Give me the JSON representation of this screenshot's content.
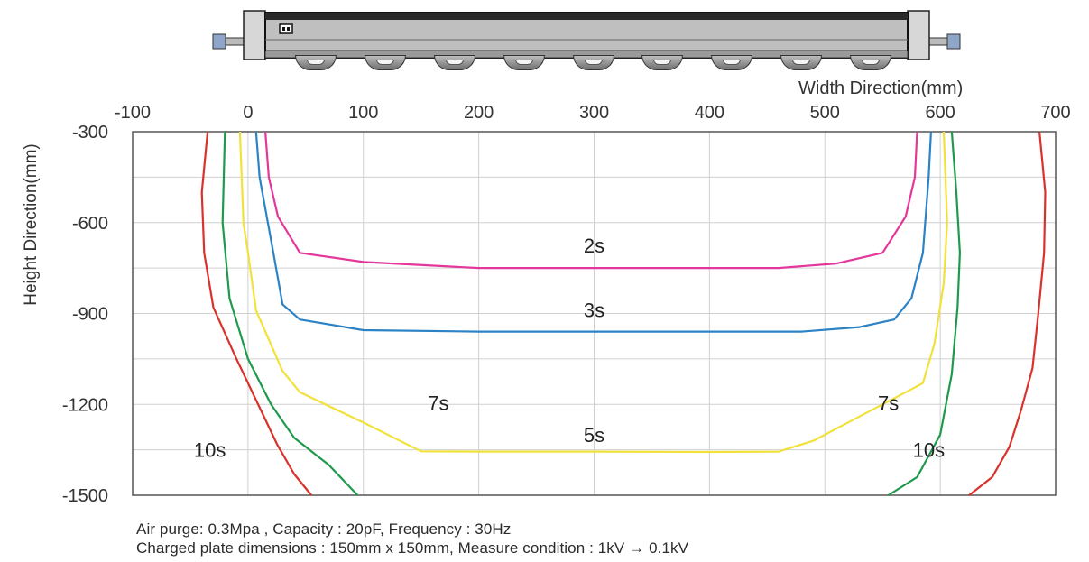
{
  "chart_data": {
    "type": "line",
    "xlabel": "Width Direction(mm)",
    "ylabel": "Height Direction(mm)",
    "xlim": [
      -100,
      700
    ],
    "ylim": [
      -1500,
      -300
    ],
    "x_ticks": [
      "-100",
      "0",
      "100",
      "200",
      "300",
      "400",
      "500",
      "600",
      "700"
    ],
    "y_ticks": [
      "-300",
      "-600",
      "-900",
      "-1200",
      "-1500"
    ],
    "x_axis_position": "top",
    "grid": true,
    "series": [
      {
        "name": "2s",
        "color": "#e4379b",
        "label_at": [
          300,
          -675
        ],
        "points": [
          [
            15,
            -300
          ],
          [
            18,
            -450
          ],
          [
            26,
            -580
          ],
          [
            45,
            -700
          ],
          [
            100,
            -730
          ],
          [
            200,
            -750
          ],
          [
            300,
            -750
          ],
          [
            400,
            -750
          ],
          [
            460,
            -750
          ],
          [
            510,
            -735
          ],
          [
            550,
            -700
          ],
          [
            570,
            -580
          ],
          [
            578,
            -450
          ],
          [
            580,
            -300
          ]
        ]
      },
      {
        "name": "3s",
        "color": "#2b83c6",
        "label_at": [
          300,
          -888
        ],
        "points": [
          [
            7,
            -300
          ],
          [
            10,
            -450
          ],
          [
            22,
            -700
          ],
          [
            30,
            -870
          ],
          [
            45,
            -920
          ],
          [
            100,
            -955
          ],
          [
            200,
            -960
          ],
          [
            300,
            -960
          ],
          [
            400,
            -960
          ],
          [
            480,
            -960
          ],
          [
            530,
            -945
          ],
          [
            560,
            -920
          ],
          [
            575,
            -850
          ],
          [
            585,
            -700
          ],
          [
            590,
            -450
          ],
          [
            592,
            -300
          ]
        ]
      },
      {
        "name": "5s",
        "color": "#f2e13b",
        "label_at": [
          300,
          -1300
        ],
        "label_y_text_offset": 0,
        "points": [
          [
            -7,
            -300
          ],
          [
            -4,
            -600
          ],
          [
            0,
            -700
          ],
          [
            7,
            -890
          ],
          [
            30,
            -1090
          ],
          [
            45,
            -1160
          ],
          [
            100,
            -1260
          ],
          [
            150,
            -1355
          ],
          [
            200,
            -1356
          ],
          [
            300,
            -1356
          ],
          [
            400,
            -1357
          ],
          [
            460,
            -1356
          ],
          [
            490,
            -1320
          ],
          [
            530,
            -1240
          ],
          [
            570,
            -1160
          ],
          [
            585,
            -1130
          ],
          [
            595,
            -1000
          ],
          [
            603,
            -800
          ],
          [
            606,
            -600
          ],
          [
            603,
            -300
          ]
        ]
      },
      {
        "name": "7s",
        "color": "#1f9a4c",
        "label_at": [
          [
            165,
            -1195
          ],
          [
            555,
            -1195
          ]
        ],
        "points": [
          [
            -20,
            -300
          ],
          [
            -22,
            -600
          ],
          [
            -16,
            -850
          ],
          [
            0,
            -1050
          ],
          [
            20,
            -1200
          ],
          [
            40,
            -1310
          ],
          [
            70,
            -1400
          ],
          [
            95,
            -1500
          ],
          [
            555,
            -1500
          ],
          [
            580,
            -1440
          ],
          [
            600,
            -1300
          ],
          [
            610,
            -1100
          ],
          [
            615,
            -880
          ],
          [
            617,
            -700
          ],
          [
            614,
            -500
          ],
          [
            610,
            -300
          ]
        ]
      },
      {
        "name": "10s",
        "color": "#d9322c",
        "label_at": [
          [
            -33,
            -1350
          ],
          [
            590,
            -1350
          ]
        ],
        "points": [
          [
            -35,
            -300
          ],
          [
            -40,
            -500
          ],
          [
            -38,
            -700
          ],
          [
            -30,
            -880
          ],
          [
            -10,
            -1050
          ],
          [
            10,
            -1210
          ],
          [
            25,
            -1330
          ],
          [
            40,
            -1430
          ],
          [
            55,
            -1500
          ],
          [
            625,
            -1500
          ],
          [
            645,
            -1440
          ],
          [
            660,
            -1340
          ],
          [
            670,
            -1220
          ],
          [
            680,
            -1080
          ],
          [
            685,
            -900
          ],
          [
            690,
            -700
          ],
          [
            691,
            -500
          ],
          [
            686,
            -300
          ]
        ]
      }
    ]
  },
  "footnote": {
    "line1": "Air purge: 0.3Mpa , Capacity : 20pF,  Frequency : 30Hz",
    "line2": "Charged plate dimensions : 150mm x 150mm, Measure condition : 1kV  →  0.1kV"
  },
  "device": {
    "nozzle_count": 9
  }
}
